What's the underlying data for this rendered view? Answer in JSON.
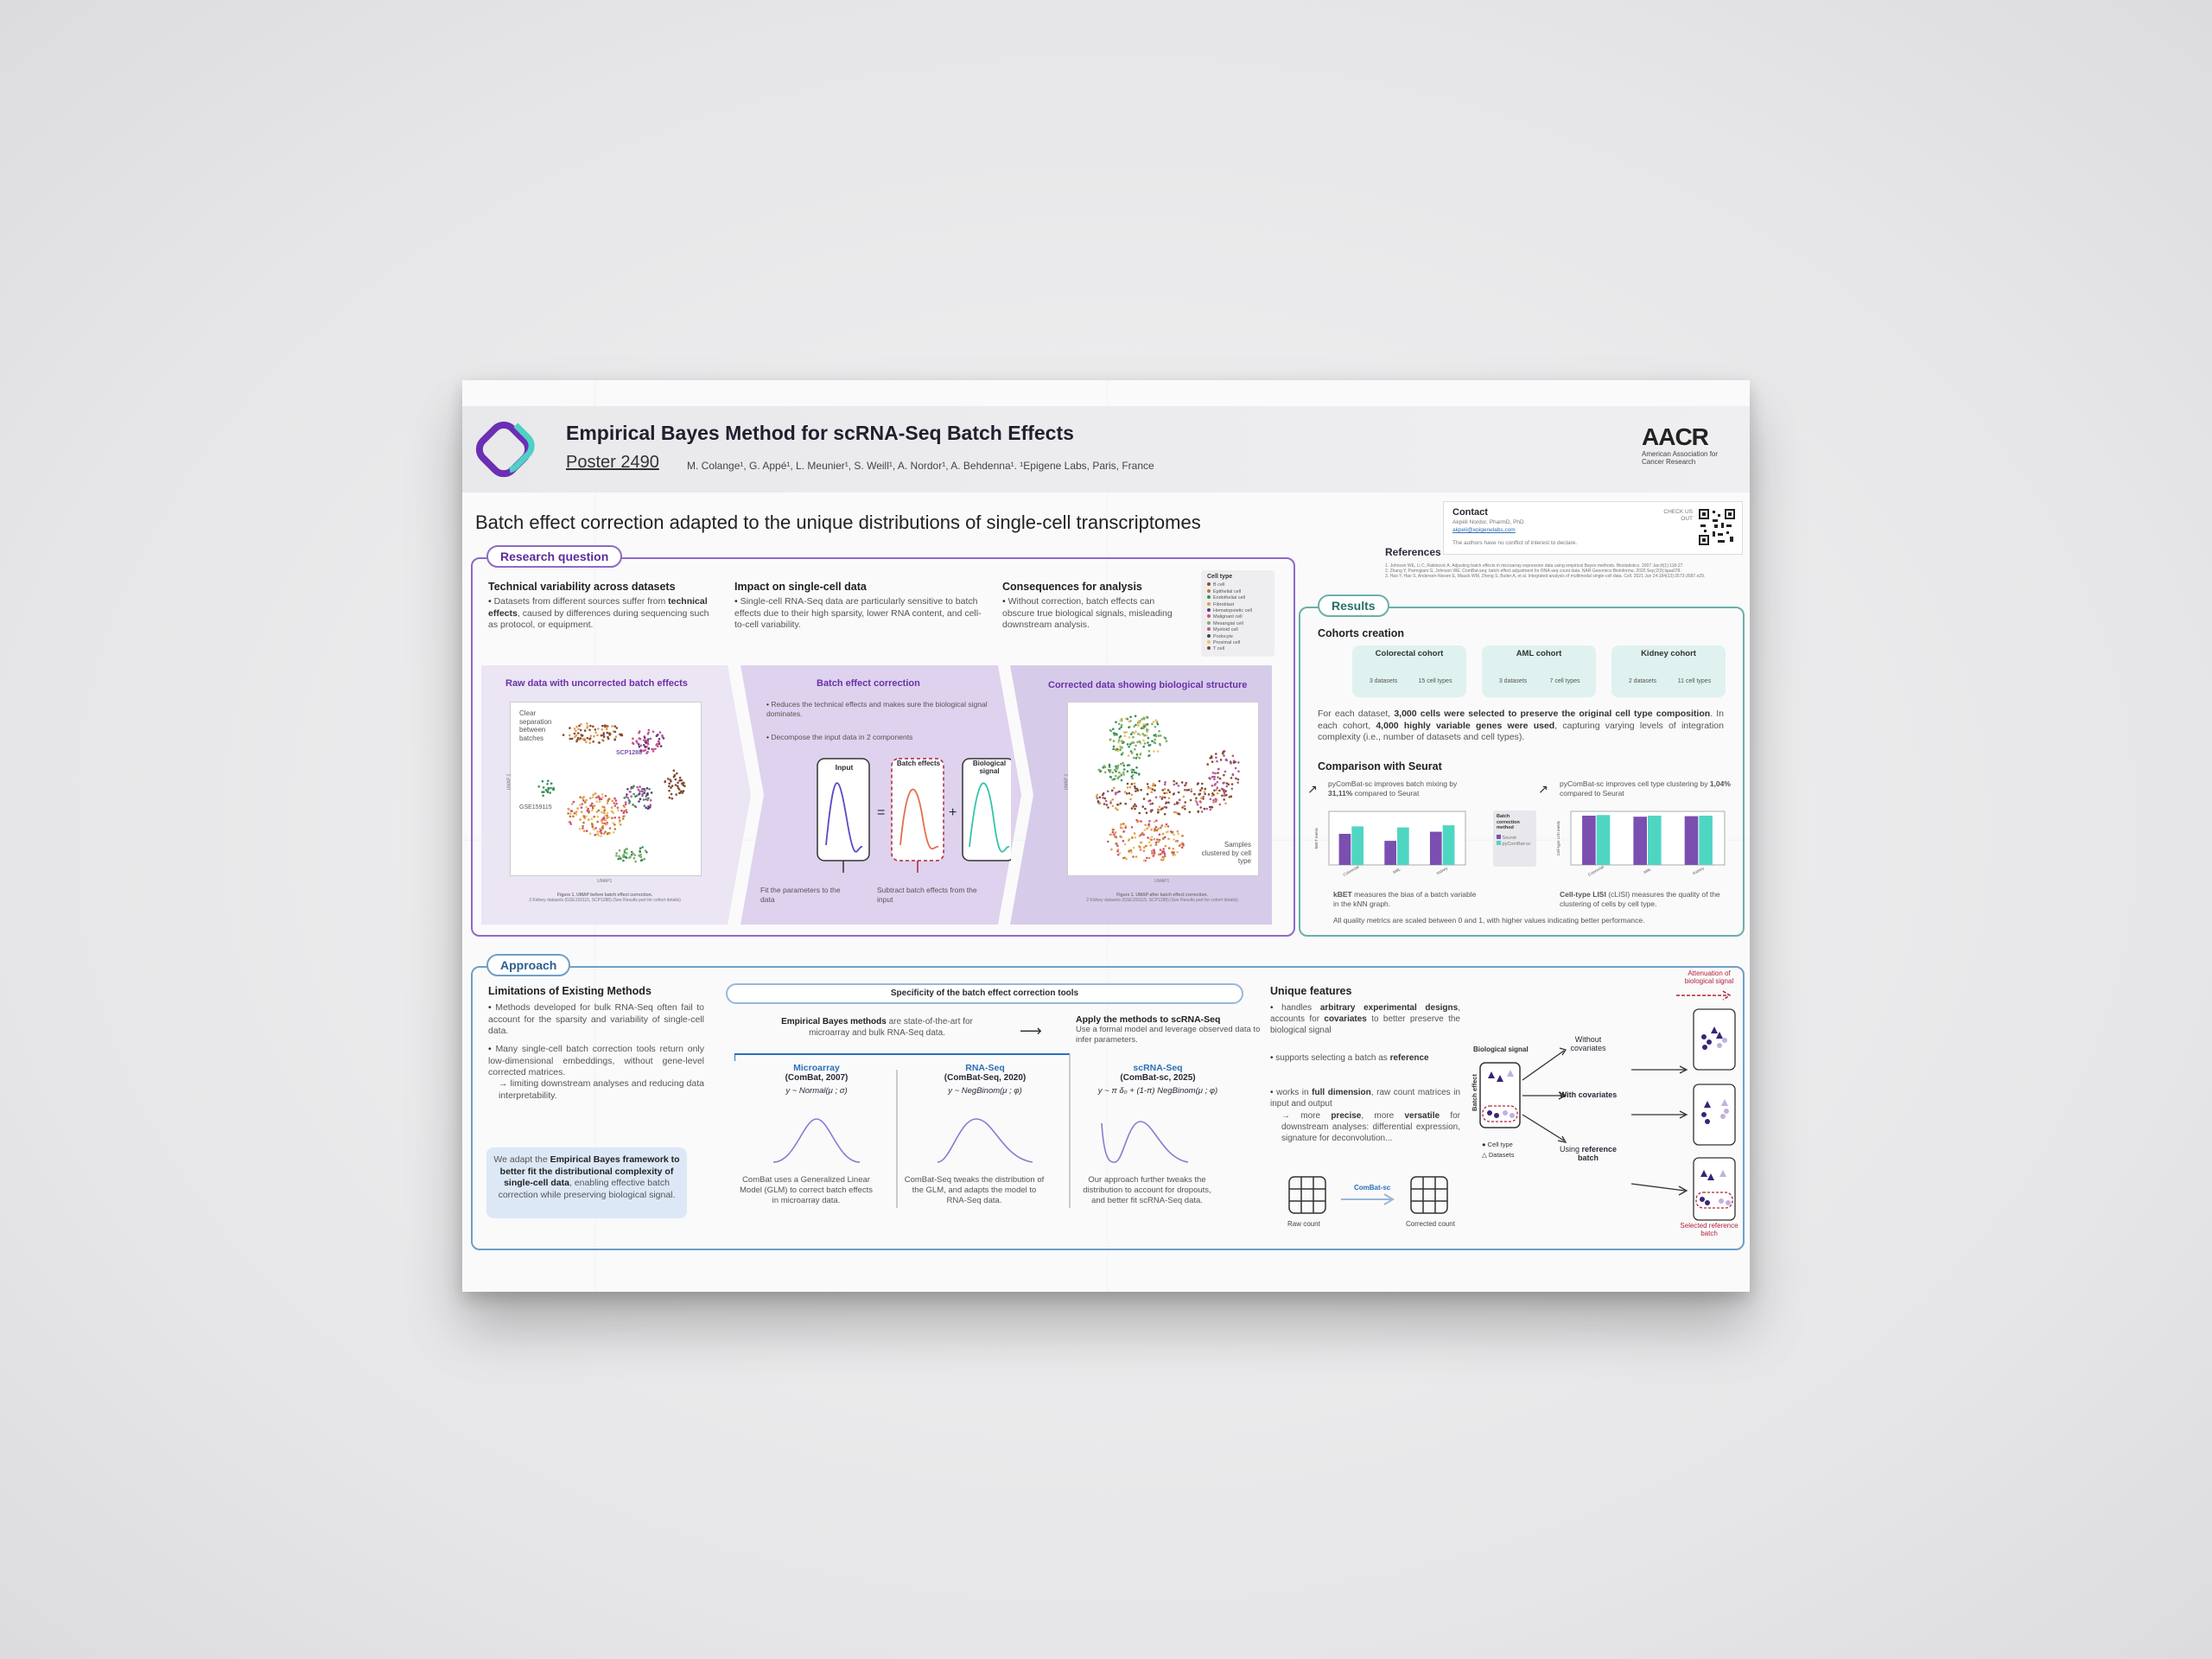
{
  "header": {
    "title": "Empirical Bayes Method for scRNA-Seq Batch Effects",
    "poster_number": "Poster 2490",
    "authors": "M. Colange¹, G. Appé¹, L. Meunier¹, S. Weill¹, A. Nordor¹, A. Behdenna¹.  ¹Epigene Labs, Paris, France",
    "aacr_logo": "AACR",
    "aacr_sub": "American Association for Cancer Research"
  },
  "subtitle": "Batch effect correction adapted to the unique distributions of single-cell transcriptomes",
  "contact": {
    "label": "Contact",
    "name": "Akpéli Nordor, PharmD, PhD",
    "email": "akpeli@epigenelabs.com",
    "conflict": "The authors have no conflict of interest to declare.",
    "check_us_out": "CHECK US OUT"
  },
  "references": {
    "heading": "References",
    "items": [
      "Johnson WE, Li C, Rabinovic A. Adjusting batch effects in microarray expression data using empirical Bayes methods. Biostatistics. 2007 Jan;8(1):118-27.",
      "Zhang Y, Parmigiani G, Johnson WE. ComBat-seq: batch effect adjustment for RNA-seq count data. NAR Genomics Bioinforma. 2020 Sep;2(3):lqaa078.",
      "Hao Y, Hao S, Andersen-Nissen E, Mauck WM, Zheng S, Butler A, et al. Integrated analysis of multimodal single-cell data. Cell. 2021 Jun 24;184(13):3573-3587.e29."
    ]
  },
  "research": {
    "label": "Research question",
    "col1": {
      "title": "Technical variability across datasets",
      "text_pre": "Datasets from different sources suffer from ",
      "text_bold": "technical effects",
      "text_post": ", caused by differences during sequencing such as protocol, or equipment."
    },
    "col2": {
      "title": "Impact on single-cell data",
      "text": "Single-cell RNA-Seq data are particularly sensitive to batch effects due to their high sparsity, lower RNA content, and cell-to-cell variability."
    },
    "col3": {
      "title": "Consequences for analysis",
      "text": "Without correction, batch effects can obscure true biological signals, misleading downstream analysis."
    },
    "legend_title": "Cell type",
    "legend_items": [
      "B cell",
      "Epithelial cell",
      "Endothelial cell",
      "Fibroblast",
      "Hematopoietic cell",
      "Malignant cell",
      "Mesangial cell",
      "Myeloid cell",
      "Podocyte",
      "Proximal cell",
      "T cell"
    ],
    "legend_colors": [
      "#8a4b2a",
      "#c0782f",
      "#3a8f5a",
      "#e39a4f",
      "#5a3a7a",
      "#d64b80",
      "#7ab06a",
      "#b35a9a",
      "#444444",
      "#e6c36a",
      "#7a4a3a"
    ],
    "raw": {
      "title": "Raw data with uncorrected batch effects",
      "note": "Clear separation between batches",
      "label_a": "SCP1288",
      "label_b": "GSE159115",
      "xaxis": "UMAP1",
      "yaxis": "UMAP 2",
      "caption_bold": "Figure 1. UMAP before batch effect correction.",
      "caption": "2 Kidney datasets (GSE159115, SCP1288) (See Results part for cohort details)"
    },
    "correction": {
      "title": "Batch effect correction",
      "b1": "Reduces the technical effects and makes sure the biological signal dominates.",
      "b2": "Decompose the input data in 2 components",
      "input": "Input",
      "batch": "Batch effects",
      "bio": "Biological signal",
      "eq": "=",
      "plus": "+",
      "fit": "Fit the parameters to the data",
      "subtract": "Subtract batch effects from the input"
    },
    "corrected": {
      "title": "Corrected data showing biological structure",
      "note": "Samples clustered by cell type",
      "xaxis": "UMAP1",
      "yaxis": "UMAP 2",
      "caption_bold": "Figure 1. UMAP after batch effect correction.",
      "caption": "2 Kidney datasets (GSE159115, SCP1288) (See Results part for cohort details)"
    }
  },
  "results": {
    "label": "Results",
    "cohorts_title": "Cohorts creation",
    "cohorts": [
      {
        "name": "Colorectal cohort",
        "datasets": "3 datasets",
        "types": "15 cell types"
      },
      {
        "name": "AML cohort",
        "datasets": "3 datasets",
        "types": "7 cell types"
      },
      {
        "name": "Kidney cohort",
        "datasets": "2 datasets",
        "types": "11 cell types"
      }
    ],
    "cohort_text_1": "For each dataset, ",
    "cohort_text_b1": "3,000 cells were selected to preserve the original cell type composition",
    "cohort_text_2": ". In each cohort, ",
    "cohort_text_b2": "4,000 highly variable genes were used",
    "cohort_text_3": ", capturing varying levels of integration complexity (i.e., number of datasets and cell types).",
    "comparison_title": "Comparison with Seurat",
    "left_claim_pre": "pyComBat-sc improves batch mixing by ",
    "left_claim_bold": "31,11%",
    "left_claim_post": " compared to Seurat",
    "right_claim_pre": "pyComBat-sc improves cell type clustering by ",
    "right_claim_bold": "1,04%",
    "right_claim_post": " compared to Seurat",
    "legend_title": "Batch correction method",
    "legend_seurat": "Seurat",
    "legend_pycombat": "pyComBat-sc",
    "left_desc_bold": "kBET",
    "left_desc": " measures the bias of a batch variable in the kNN graph.",
    "right_desc_bold": "Cell-type LISI",
    "right_desc": " (cLISI) measures the quality of the clustering of cells by cell type.",
    "footnote": "All quality metrics are scaled between 0 and 1, with higher values indicating better performance.",
    "left_ylabel": "kBET metric",
    "right_ylabel": "Cell-type LISI metric"
  },
  "chart_data": [
    {
      "type": "bar",
      "title": "",
      "ylabel": "kBET metric",
      "categories": [
        "Colorectal",
        "AML",
        "Kidney"
      ],
      "ylim": [
        0,
        1
      ],
      "series": [
        {
          "name": "Seurat",
          "values": [
            0.58,
            0.45,
            0.62
          ],
          "color": "#7a4fb0"
        },
        {
          "name": "pyComBat-sc",
          "values": [
            0.72,
            0.7,
            0.74
          ],
          "color": "#4fd6c2"
        }
      ]
    },
    {
      "type": "bar",
      "title": "",
      "ylabel": "Cell-type LISI metric",
      "categories": [
        "Colorectal",
        "AML",
        "Kidney"
      ],
      "ylim": [
        0,
        1
      ],
      "series": [
        {
          "name": "Seurat",
          "values": [
            0.92,
            0.9,
            0.91
          ],
          "color": "#7a4fb0"
        },
        {
          "name": "pyComBat-sc",
          "values": [
            0.93,
            0.92,
            0.92
          ],
          "color": "#4fd6c2"
        }
      ]
    }
  ],
  "approach": {
    "label": "Approach",
    "lim_title": "Limitations of Existing Methods",
    "lim1": "Methods developed for bulk RNA-Seq often fail to account for the sparsity and variability of single-cell data.",
    "lim2": "Many single-cell batch correction tools return only low-dimensional embeddings, without gene-level corrected matrices.",
    "lim3": "→ limiting downstream analyses and reducing data interpretability.",
    "box_pre": "We adapt the ",
    "box_bold": "Empirical Bayes framework to better fit the distributional complexity of single-cell data",
    "box_post": ", enabling effective batch correction while preserving biological signal.",
    "spec_title": "Specificity of the batch effect correction tools",
    "eb_bold": "Empirical Bayes methods",
    "eb_text": " are state-of-the-art for microarray and bulk RNA-Seq data.",
    "apply_bold": "Apply the methods to scRNA-Seq",
    "apply_text": "Use a formal model and leverage observed data to infer parameters.",
    "methods": [
      {
        "name": "Microarray",
        "tool": "(ComBat, 2007)",
        "formula": "y ~ Normal(μ ; σ)",
        "desc": "ComBat uses a Generalized Linear Model (GLM) to correct batch effects in microarray data."
      },
      {
        "name": "RNA-Seq",
        "tool": "(ComBat-Seq, 2020)",
        "formula": "y ~ NegBinom(μ ; φ)",
        "desc": "ComBat-Seq tweaks the distribution of the GLM, and adapts the model to RNA-Seq data."
      },
      {
        "name": "scRNA-Seq",
        "tool": "(ComBat-sc, 2025)",
        "formula": "y ~ π δ₀ + (1-π) NegBinom(μ ; φ)",
        "desc": "Our approach further tweaks the distribution to account for dropouts, and better fit scRNA-Seq data."
      }
    ],
    "uf_title": "Unique features",
    "uf1_pre": "handles ",
    "uf1_bold": "arbitrary experimental designs",
    "uf1_mid": ", accounts for ",
    "uf1_bold2": "covariates",
    "uf1_post": " to better preserve the biological signal",
    "uf2_pre": "supports selecting a batch as ",
    "uf2_bold": "reference",
    "uf3_pre": "works in ",
    "uf3_bold": "full dimension",
    "uf3_post": ", raw count matrices in input and output",
    "uf3_sub_pre": "→ more ",
    "uf3_sub_b1": "precise",
    "uf3_sub_mid": ", more ",
    "uf3_sub_b2": "versatile",
    "uf3_sub_post": " for downstream analyses: differential expression, signature for deconvolution...",
    "raw_count": "Raw count",
    "corrected_count": "Corrected count",
    "combat_sc": "ComBat-sc",
    "bio_signal": "Biological signal",
    "batch_effect": "Batch effect",
    "cell_type": "Cell type",
    "datasets": "Datasets",
    "without_cov": "Without covariates",
    "with_cov": "With covariates",
    "using_ref_pre": "Using ",
    "using_ref_bold": "reference batch",
    "attenuation": "Attenuation of biological signal",
    "selected_ref": "Selected reference batch"
  }
}
